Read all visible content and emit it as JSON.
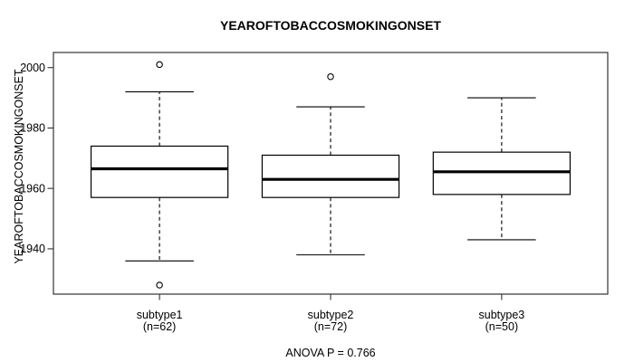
{
  "chart_data": {
    "type": "boxplot",
    "title": "YEAROFTOBACCOSMOKINGONSET",
    "ylabel": "YEAROFTOBACCOSMOKINGONSET",
    "xlabel": "",
    "caption": "ANOVA P = 0.766",
    "ylim": [
      1925,
      2005
    ],
    "yticks": [
      1940,
      1960,
      1980,
      2000
    ],
    "xlim": [
      0.38,
      3.62
    ],
    "grid": false,
    "legend_position": "none",
    "box_width": 0.8,
    "cap_width": 0.4,
    "colors": {
      "line": "#000000",
      "frame": "#333333",
      "background": "#ffffff",
      "box_fill": "#ffffff"
    },
    "groups": [
      {
        "label": "subtype1",
        "n_label": "(n=62)",
        "n": 62,
        "position": 1,
        "whisker_low": 1936,
        "q1": 1957,
        "median": 1966.5,
        "q3": 1974,
        "whisker_high": 1992,
        "outliers": [
          2001,
          1928
        ]
      },
      {
        "label": "subtype2",
        "n_label": "(n=72)",
        "n": 72,
        "position": 2,
        "whisker_low": 1938,
        "q1": 1957,
        "median": 1963,
        "q3": 1971,
        "whisker_high": 1987,
        "outliers": [
          1997
        ]
      },
      {
        "label": "subtype3",
        "n_label": "(n=50)",
        "n": 50,
        "position": 3,
        "whisker_low": 1943,
        "q1": 1958,
        "median": 1965.5,
        "q3": 1972,
        "whisker_high": 1990,
        "outliers": []
      }
    ]
  }
}
